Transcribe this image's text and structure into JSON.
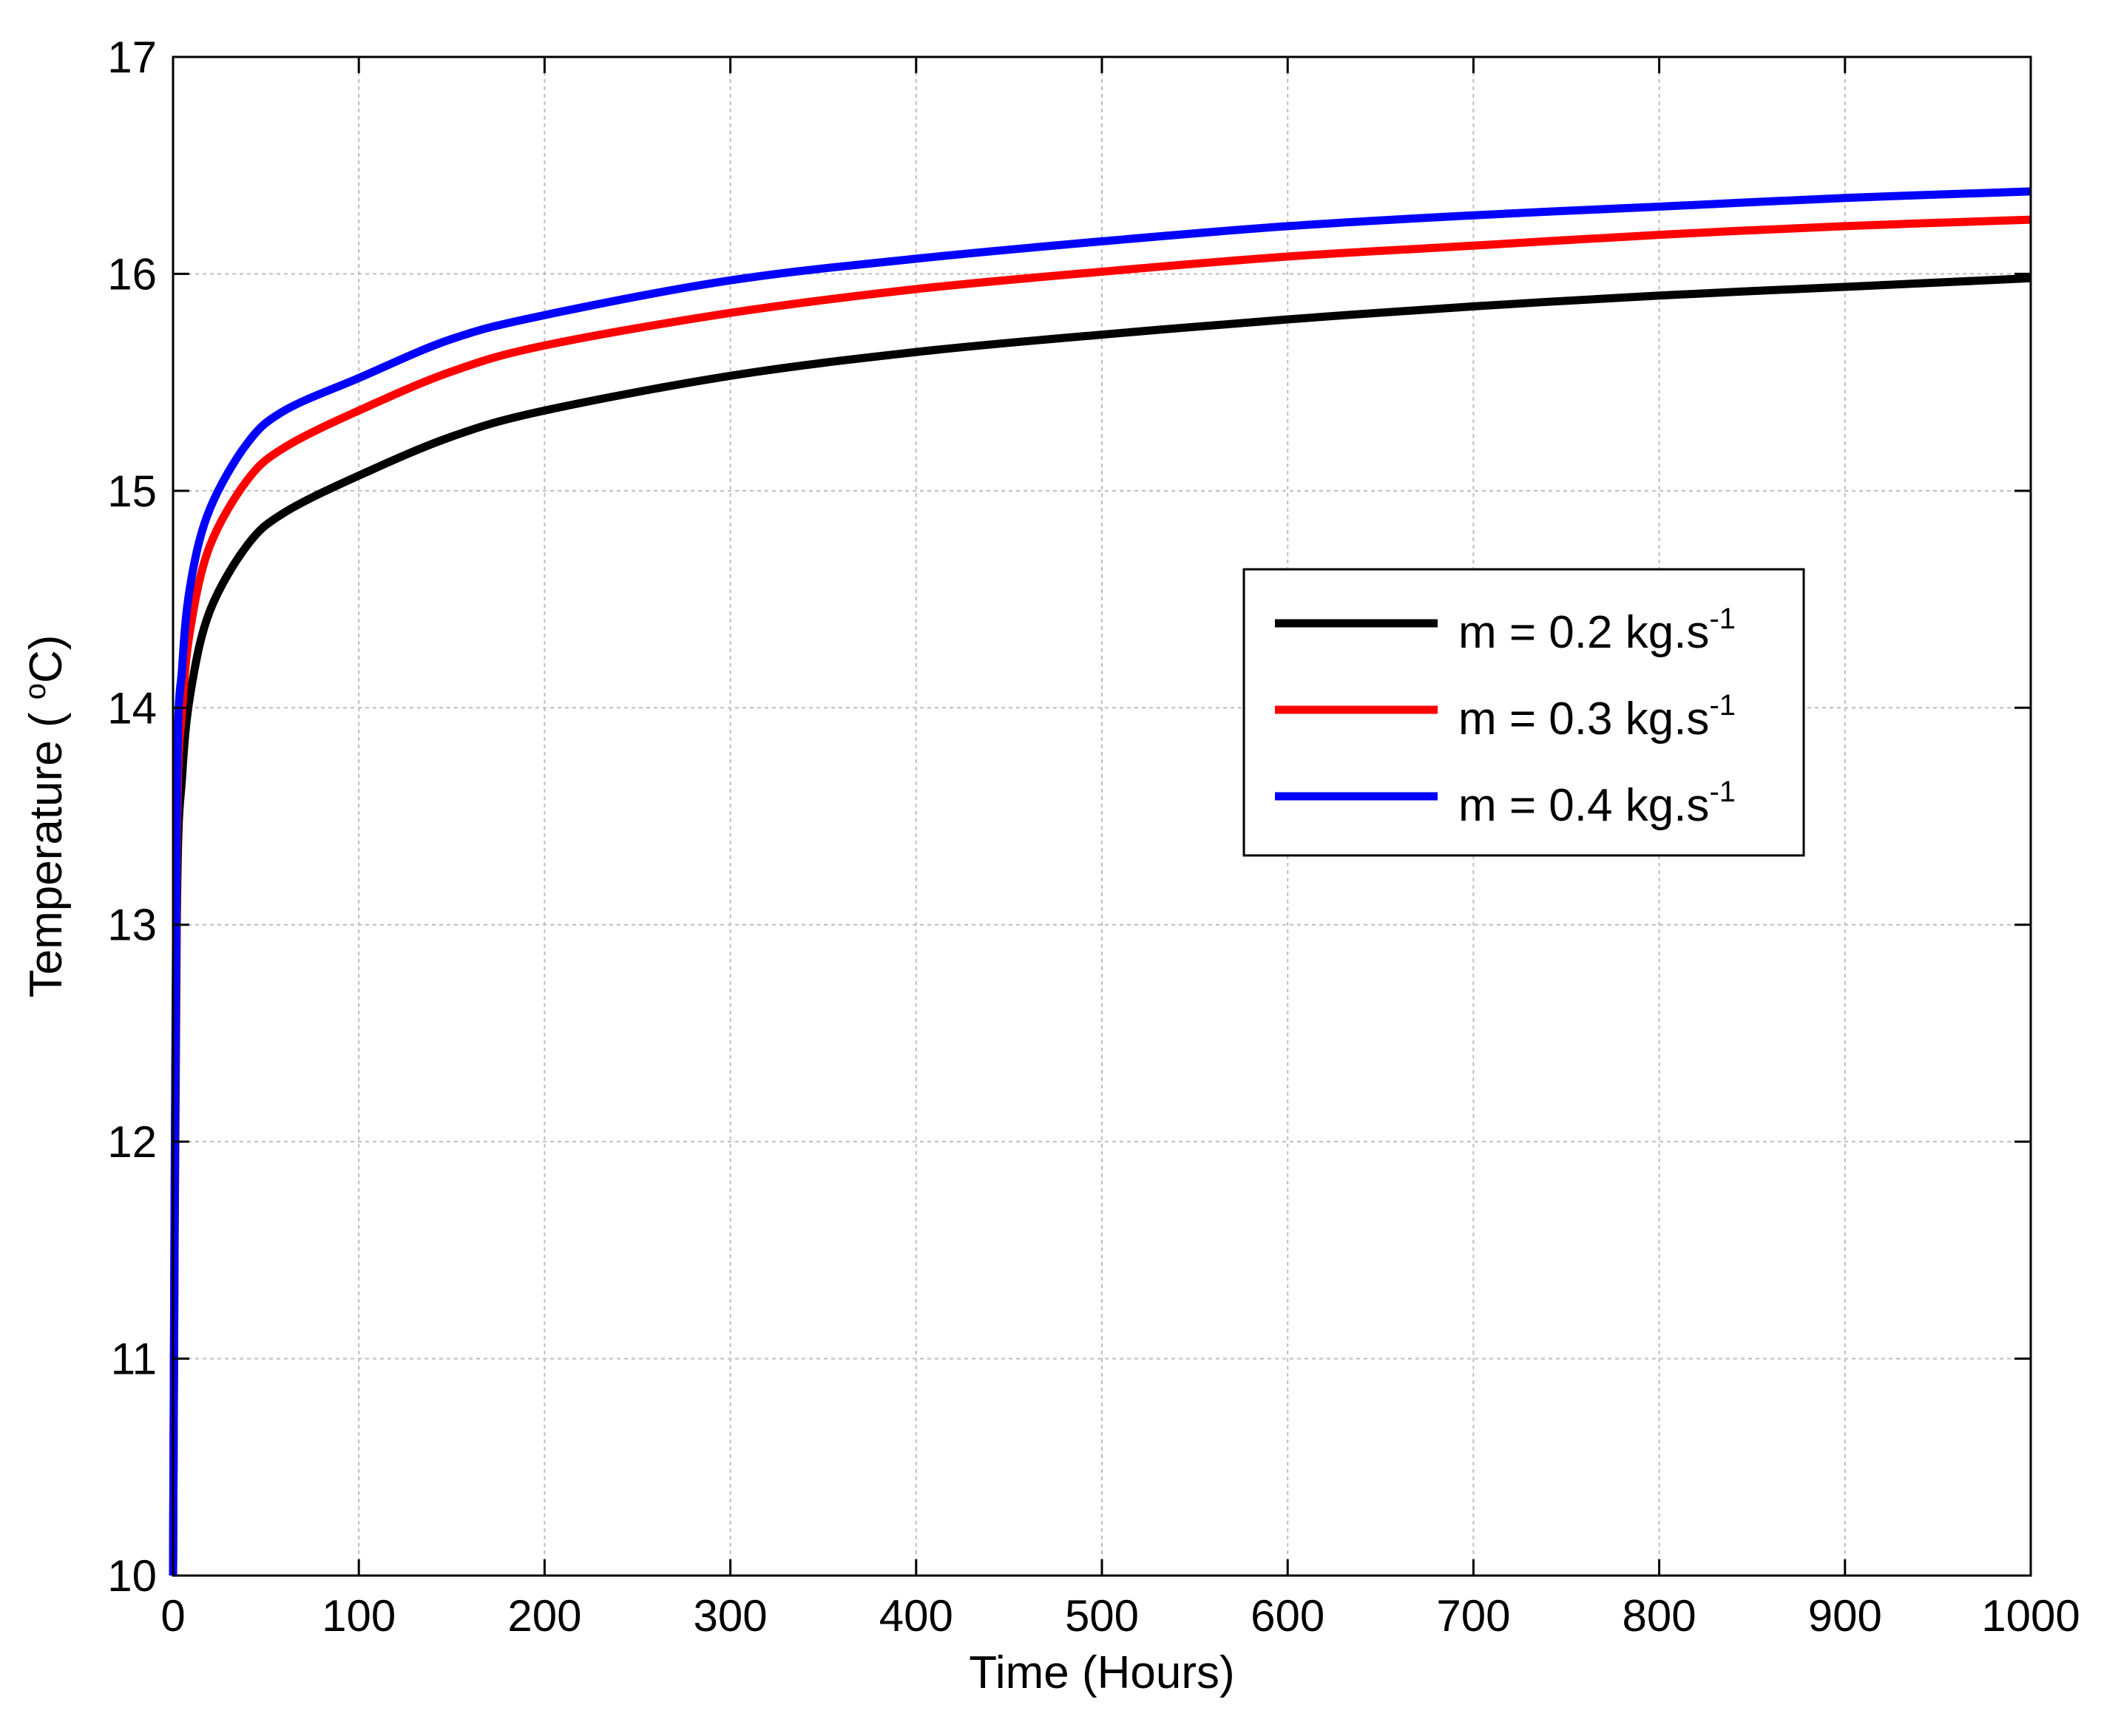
{
  "chart_data": {
    "type": "line",
    "xlabel": "Time (Hours)",
    "ylabel_pre": "Temperature ( ",
    "ylabel_sup": "o",
    "ylabel_post": "C)",
    "xlim": [
      0,
      1000
    ],
    "ylim": [
      10,
      17
    ],
    "xticks": [
      0,
      100,
      200,
      300,
      400,
      500,
      600,
      700,
      800,
      900,
      1000
    ],
    "yticks": [
      10,
      11,
      12,
      13,
      14,
      15,
      16,
      17
    ],
    "grid": true,
    "legend_position": "right-middle",
    "x": [
      0,
      2,
      5,
      10,
      20,
      40,
      60,
      100,
      150,
      200,
      300,
      400,
      500,
      600,
      700,
      800,
      900,
      1000
    ],
    "series": [
      {
        "name": "m = 0.2 kg.s",
        "name_sup": "-1",
        "color": "#000000",
        "values": [
          10.0,
          13.0,
          13.7,
          14.1,
          14.45,
          14.75,
          14.9,
          15.07,
          15.25,
          15.37,
          15.53,
          15.64,
          15.72,
          15.79,
          15.85,
          15.9,
          15.94,
          15.98
        ]
      },
      {
        "name": "m = 0.3 kg.s",
        "name_sup": "-1",
        "color": "#ff0000",
        "values": [
          10.0,
          13.3,
          14.0,
          14.4,
          14.75,
          15.05,
          15.2,
          15.37,
          15.55,
          15.67,
          15.82,
          15.93,
          16.01,
          16.08,
          16.13,
          16.18,
          16.22,
          16.25
        ]
      },
      {
        "name": "m = 0.4 kg.s",
        "name_sup": "-1",
        "color": "#0000ff",
        "values": [
          10.0,
          13.5,
          14.2,
          14.6,
          14.92,
          15.22,
          15.37,
          15.52,
          15.7,
          15.81,
          15.97,
          16.07,
          16.15,
          16.22,
          16.27,
          16.31,
          16.35,
          16.38
        ]
      }
    ]
  }
}
